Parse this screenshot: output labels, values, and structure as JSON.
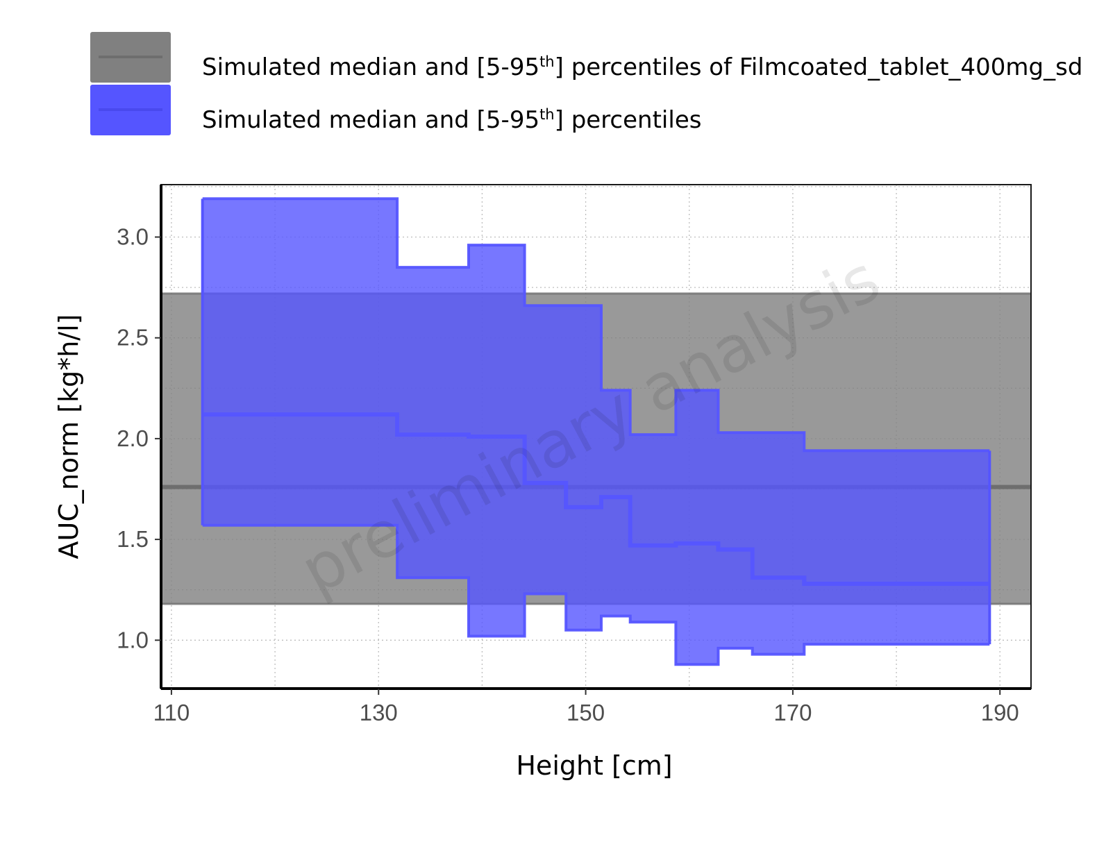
{
  "legend": {
    "items": [
      {
        "text_before": "Simulated median and [5-95",
        "superscript": "th",
        "text_after": "] percentiles of Filmcoated_tablet_400mg_sd",
        "fill": "#808080",
        "line": "#6e6e6e"
      },
      {
        "text_before": "Simulated median and [5-95",
        "superscript": "th",
        "text_after": "] percentiles",
        "fill": "#5555ff",
        "line": "#4949ee"
      }
    ]
  },
  "watermark": "preliminary analysis",
  "chart_data": {
    "type": "area",
    "xlabel": "Height [cm]",
    "ylabel": "AUC_norm [kg*h/l]",
    "xlim": [
      109,
      193
    ],
    "ylim": [
      0.76,
      3.26
    ],
    "x_ticks": [
      110,
      130,
      150,
      170,
      190
    ],
    "x_tick_labels": [
      "110",
      "130",
      "150",
      "170",
      "190"
    ],
    "y_ticks": [
      1.0,
      1.5,
      2.0,
      2.5,
      3.0
    ],
    "y_tick_labels": [
      "1.0",
      "1.5",
      "2.0",
      "2.5",
      "3.0"
    ],
    "grid": true,
    "reference_band": {
      "name": "Simulated median and [5-95th] percentiles of Filmcoated_tablet_400mg_sd",
      "median": 1.76,
      "lower": 1.18,
      "upper": 2.72,
      "color": "#808080"
    },
    "series": [
      {
        "name": "Simulated median and [5-95th] percentiles",
        "step": "post",
        "color": "#5555ff",
        "x": [
          113,
          131.8,
          138.7,
          144.1,
          148.1,
          151.5,
          154.3,
          158.7,
          162.8,
          166.1,
          171.1,
          189
        ],
        "median": [
          2.12,
          2.02,
          2.01,
          1.78,
          1.66,
          1.71,
          1.47,
          1.48,
          1.45,
          1.31,
          1.28,
          1.28
        ],
        "upper": [
          3.19,
          2.85,
          2.96,
          2.66,
          2.66,
          2.24,
          2.02,
          2.24,
          2.03,
          2.03,
          1.94,
          1.94
        ],
        "lower": [
          1.57,
          1.31,
          1.02,
          1.23,
          1.05,
          1.12,
          1.09,
          0.88,
          0.96,
          0.93,
          0.98,
          0.98
        ]
      }
    ]
  }
}
